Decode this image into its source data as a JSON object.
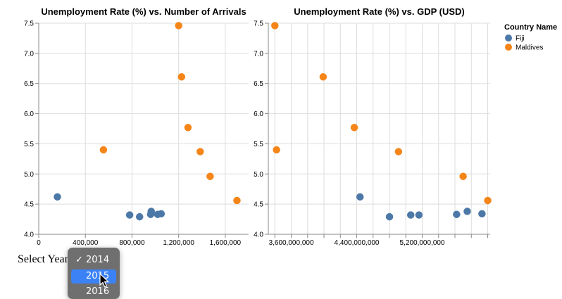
{
  "control": {
    "label": "Select Year",
    "options": [
      "2014",
      "2015",
      "2016"
    ],
    "selected": "2014",
    "hovered": "2015"
  },
  "colors": {
    "Fiji": "#4c78a8",
    "Maldives": "#f58518"
  },
  "chart_data": [
    {
      "type": "scatter",
      "title": "Unemployment Rate (%) vs. Number of Arrivals",
      "xlim": [
        0,
        1800000
      ],
      "ylim": [
        4.0,
        7.5
      ],
      "xticks": [
        0,
        400000,
        800000,
        1200000,
        1600000
      ],
      "xtick_labels": [
        "0",
        "400,000",
        "800,000",
        "1,200,000",
        "1,600,000"
      ],
      "yticks": [
        4.0,
        4.5,
        5.0,
        5.5,
        6.0,
        6.5,
        7.0,
        7.5
      ],
      "ytick_labels": [
        "4.0",
        "4.5",
        "5.0",
        "5.5",
        "6.0",
        "6.5",
        "7.0",
        "7.5"
      ],
      "grid": true,
      "series": [
        {
          "name": "Fiji",
          "points": [
            {
              "x": 160000,
              "y": 4.62
            },
            {
              "x": 780000,
              "y": 4.32
            },
            {
              "x": 865000,
              "y": 4.29
            },
            {
              "x": 960000,
              "y": 4.33
            },
            {
              "x": 965000,
              "y": 4.38
            },
            {
              "x": 1020000,
              "y": 4.33
            },
            {
              "x": 1050000,
              "y": 4.34
            }
          ]
        },
        {
          "name": "Maldives",
          "points": [
            {
              "x": 555000,
              "y": 5.4
            },
            {
              "x": 1200000,
              "y": 7.46
            },
            {
              "x": 1225000,
              "y": 6.61
            },
            {
              "x": 1280000,
              "y": 5.77
            },
            {
              "x": 1385000,
              "y": 5.37
            },
            {
              "x": 1470000,
              "y": 4.96
            },
            {
              "x": 1700000,
              "y": 4.56
            }
          ]
        }
      ]
    },
    {
      "type": "scatter",
      "title": "Unemployment Rate (%) vs. GDP (USD)",
      "xlim": [
        3320000000,
        6030000000
      ],
      "ylim": [
        4.0,
        7.5
      ],
      "xticks": [
        3600000000,
        4400000000,
        5200000000
      ],
      "xtick_labels": [
        "3,600,000,000",
        "4,400,000,000",
        "5,200,000,000"
      ],
      "minor_xticks": [
        3400000000,
        3800000000,
        4000000000,
        4200000000,
        4600000000,
        4800000000,
        5000000000,
        5400000000,
        5600000000,
        5800000000,
        6000000000
      ],
      "yticks": [
        4.0,
        4.5,
        5.0,
        5.5,
        6.0,
        6.5,
        7.0,
        7.5
      ],
      "ytick_labels": [
        "4.0",
        "4.5",
        "5.0",
        "5.5",
        "6.0",
        "6.5",
        "7.0",
        "7.5"
      ],
      "grid": true,
      "legend": {
        "title": "Country Name",
        "position": "right",
        "entries": [
          "Fiji",
          "Maldives"
        ]
      },
      "series": [
        {
          "name": "Fiji",
          "points": [
            {
              "x": 4440000000,
              "y": 4.62
            },
            {
              "x": 4800000000,
              "y": 4.29
            },
            {
              "x": 5060000000,
              "y": 4.32
            },
            {
              "x": 5160000000,
              "y": 4.32
            },
            {
              "x": 5620000000,
              "y": 4.33
            },
            {
              "x": 5750000000,
              "y": 4.38
            },
            {
              "x": 5930000000,
              "y": 4.34
            }
          ]
        },
        {
          "name": "Maldives",
          "points": [
            {
              "x": 3400000000,
              "y": 7.46
            },
            {
              "x": 3420000000,
              "y": 5.4
            },
            {
              "x": 3990000000,
              "y": 6.61
            },
            {
              "x": 4370000000,
              "y": 5.77
            },
            {
              "x": 4910000000,
              "y": 5.37
            },
            {
              "x": 5700000000,
              "y": 4.96
            },
            {
              "x": 6000000000,
              "y": 4.56
            }
          ]
        }
      ]
    }
  ]
}
